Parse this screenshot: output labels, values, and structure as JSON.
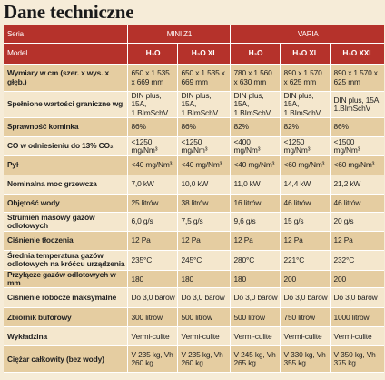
{
  "title": "Dane techniczne",
  "header": {
    "series_label": "Seria",
    "series": [
      "MINI Z1",
      "VARIA"
    ],
    "model_label": "Model",
    "models": [
      "H₂O",
      "H₂O XL",
      "H₂O",
      "H₂O XL",
      "H₂O XXL"
    ]
  },
  "rows": [
    {
      "label": "Wymiary w cm (szer. x wys. x głęb.)",
      "values": [
        "650 x 1.535 x 669 mm",
        "650 x 1.535 x 669 mm",
        "780 x 1.560 x 630 mm",
        "890 x 1.570 x 625 mm",
        "890 x 1.570 x 625 mm"
      ]
    },
    {
      "label": "Spełnione wartości graniczne wg",
      "values": [
        "DIN plus, 15A, 1.BImSchV",
        "DIN plus, 15A, 1.BImSchV",
        "DIN plus, 15A, 1.BImSchV",
        "DIN plus, 15A, 1.BImSchV",
        "DIN plus, 15A, 1.BImSchV"
      ]
    },
    {
      "label": "Sprawność kominka",
      "values": [
        "86%",
        "86%",
        "82%",
        "82%",
        "86%"
      ]
    },
    {
      "label": "CO w odniesieniu do 13% CO₂",
      "values": [
        "<1250 mg/Nm³",
        "<1250 mg/Nm³",
        "<400 mg/Nm³",
        "<1250 mg/Nm³",
        "<1500 mg/Nm³"
      ]
    },
    {
      "label": "Pył",
      "values": [
        "<40 mg/Nm³",
        "<40 mg/Nm³",
        "<40 mg/Nm³",
        "<60 mg/Nm³",
        "<60 mg/Nm³"
      ]
    },
    {
      "label": "Nominalna moc grzewcza",
      "values": [
        "7,0 kW",
        "10,0 kW",
        "11,0 kW",
        "14,4 kW",
        "21,2 kW"
      ]
    },
    {
      "label": "Objętość wody",
      "values": [
        "25 litrów",
        "38 litrów",
        "16 litrów",
        "46 litrów",
        "46 litrów"
      ]
    },
    {
      "label": "Strumień masowy gazów odlotowych",
      "values": [
        "6,0 g/s",
        "7,5 g/s",
        "9,6 g/s",
        "15 g/s",
        "20 g/s"
      ]
    },
    {
      "label": "Ciśnienie tłoczenia",
      "values": [
        "12 Pa",
        "12 Pa",
        "12 Pa",
        "12 Pa",
        "12 Pa"
      ]
    },
    {
      "label": "Średnia temperatura gazów odlotowych na króćcu urządzenia",
      "small": true,
      "values": [
        "235°C",
        "245°C",
        "280°C",
        "221°C",
        "232°C"
      ]
    },
    {
      "label": "Przyłącze gazów odlotowych w mm",
      "values": [
        "180",
        "180",
        "180",
        "200",
        "200"
      ]
    },
    {
      "label": "Ciśnienie robocze maksymalne",
      "values": [
        "Do 3,0 barów",
        "Do 3,0 barów",
        "Do 3,0 barów",
        "Do 3,0 barów",
        "Do 3,0 barów"
      ]
    },
    {
      "label": "Zbiornik buforowy",
      "values": [
        "300 litrów",
        "500 litrów",
        "500 litrów",
        "750 litrów",
        "1000 litrów"
      ]
    },
    {
      "label": "Wykładzina",
      "values": [
        "Vermi-culite",
        "Vermi-culite",
        "Vermi-culite",
        "Vermi-culite",
        "Vermi-culite"
      ]
    },
    {
      "label": "Ciężar całkowity (bez wody)",
      "values": [
        "V 235 kg, Vh 260 kg",
        "V 235 kg, Vh 260 kg",
        "V 245 kg, Vh 265 kg",
        "V 330 kg, Vh 355 kg",
        "V 350 kg, Vh 375 kg"
      ]
    }
  ]
}
